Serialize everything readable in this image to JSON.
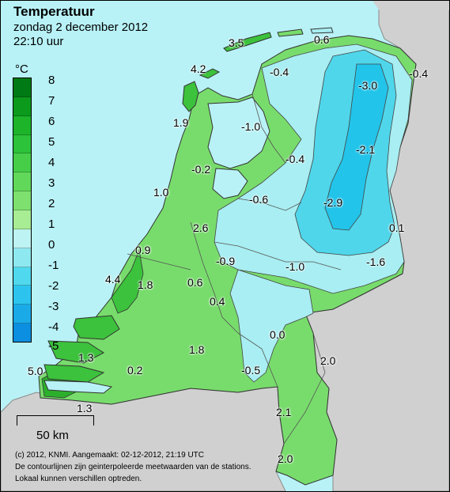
{
  "title": "Temperatuur",
  "date": "zondag 2 december 2012",
  "time": "22:10 uur",
  "legend": {
    "unit": "°C",
    "ticks": [
      "8",
      "7",
      "6",
      "5",
      "4",
      "3",
      "2",
      "1",
      "0",
      "-1",
      "-2",
      "-3",
      "-4",
      "-5"
    ],
    "colors": [
      "#007a14",
      "#0b9a1c",
      "#1db42a",
      "#2cc23a",
      "#46ce48",
      "#62d85a",
      "#7ee06e",
      "#a8ec94",
      "#bdf3f2",
      "#8ee8f0",
      "#4fd8ee",
      "#2cc4ee",
      "#1aaae8",
      "#0c8fe0"
    ]
  },
  "stations": [
    {
      "label": "3.5"
    },
    {
      "label": "0.6"
    },
    {
      "label": "4.2"
    },
    {
      "label": "-0.4"
    },
    {
      "label": "-3.0"
    },
    {
      "label": "-0.4"
    },
    {
      "label": "1.9"
    },
    {
      "label": "-1.0"
    },
    {
      "label": "-2.1"
    },
    {
      "label": "-0.2"
    },
    {
      "label": "-0.4"
    },
    {
      "label": "1.0"
    },
    {
      "label": "-0.6"
    },
    {
      "label": "-2.9"
    },
    {
      "label": "2.6"
    },
    {
      "label": "0.1"
    },
    {
      "label": "0.9"
    },
    {
      "label": "-0.9"
    },
    {
      "label": "-1.0"
    },
    {
      "label": "-1.6"
    },
    {
      "label": "4.4"
    },
    {
      "label": "1.8"
    },
    {
      "label": "0.6"
    },
    {
      "label": "0.4"
    },
    {
      "label": "0.0"
    },
    {
      "label": "1.3"
    },
    {
      "label": "1.8"
    },
    {
      "label": "2.0"
    },
    {
      "label": "5.0"
    },
    {
      "label": "0.2"
    },
    {
      "label": "-0.5"
    },
    {
      "label": "1.3"
    },
    {
      "label": "2.1"
    },
    {
      "label": "2.0"
    }
  ],
  "scale_label": "50 km",
  "footer": [
    "(c) 2012, KNMI. Aangemaakt: 02-12-2012, 21:19 UTC",
    "De contourlijnen zijn geinterpoleerde meetwaarden van de stations.",
    "Lokaal kunnen verschillen optreden."
  ]
}
